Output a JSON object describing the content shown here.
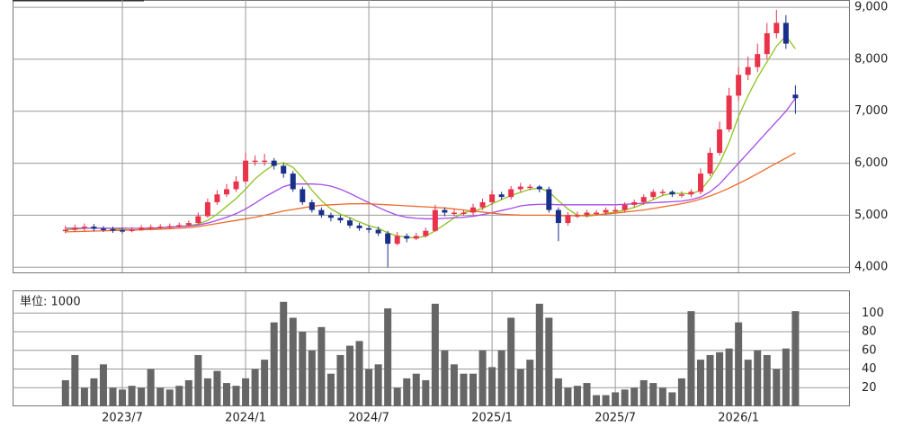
{
  "chart_data": {
    "type": "candlestick",
    "up_color": "#e8334a",
    "down_color": "#1a2f8a",
    "grid": true,
    "categories": [
      null,
      null,
      null,
      null,
      null,
      null,
      "2023/7",
      null,
      null,
      null,
      null,
      null,
      null,
      null,
      null,
      null,
      null,
      null,
      null,
      "2024/1",
      null,
      null,
      null,
      null,
      null,
      null,
      null,
      null,
      null,
      null,
      null,
      null,
      "2024/7",
      null,
      null,
      null,
      null,
      null,
      null,
      null,
      null,
      null,
      null,
      null,
      null,
      "2025/1",
      null,
      null,
      null,
      null,
      null,
      null,
      null,
      null,
      null,
      null,
      null,
      null,
      "2025/7",
      null,
      null,
      null,
      null,
      null,
      null,
      null,
      null,
      null,
      null,
      null,
      null,
      "2026/1",
      null,
      null,
      null,
      null,
      null,
      null
    ],
    "open": [
      4700,
      4720,
      4760,
      4780,
      4740,
      4730,
      4710,
      4700,
      4720,
      4760,
      4770,
      4780,
      4790,
      4810,
      4850,
      4980,
      5250,
      5400,
      5500,
      5650,
      6050,
      6050,
      6050,
      5950,
      5800,
      5500,
      5250,
      5100,
      5000,
      4950,
      4900,
      4800,
      4750,
      4720,
      4650,
      4450,
      4600,
      4550,
      4600,
      4700,
      5100,
      5050,
      5050,
      5050,
      5150,
      5250,
      5400,
      5350,
      5500,
      5550,
      5550,
      5500,
      5100,
      4850,
      5000,
      5000,
      5050,
      5050,
      5100,
      5100,
      5200,
      5250,
      5350,
      5450,
      5450,
      5400,
      5400,
      5450,
      5800,
      6200,
      6650,
      7300,
      7700,
      7850,
      8100,
      8500,
      8700,
      7320
    ],
    "high": [
      4800,
      4820,
      4840,
      4830,
      4790,
      4780,
      4760,
      4770,
      4810,
      4820,
      4830,
      4840,
      4860,
      4900,
      5050,
      5320,
      5480,
      5600,
      5750,
      6200,
      6150,
      6180,
      6100,
      6000,
      5850,
      5550,
      5300,
      5150,
      5050,
      5000,
      4950,
      4850,
      4800,
      4780,
      4700,
      4680,
      4650,
      4660,
      4760,
      5200,
      5150,
      5120,
      5100,
      5220,
      5320,
      5480,
      5450,
      5560,
      5620,
      5600,
      5580,
      5550,
      5150,
      5060,
      5070,
      5100,
      5100,
      5150,
      5160,
      5250,
      5300,
      5400,
      5500,
      5500,
      5480,
      5460,
      5500,
      5900,
      6300,
      6800,
      7450,
      7850,
      8050,
      8300,
      8700,
      8950,
      8850,
      7500
    ],
    "low": [
      4650,
      4680,
      4700,
      4690,
      4680,
      4660,
      4650,
      4670,
      4700,
      4720,
      4730,
      4740,
      4760,
      4780,
      4820,
      4950,
      5200,
      5350,
      5450,
      5600,
      5950,
      5950,
      5880,
      5720,
      5450,
      5200,
      5050,
      4950,
      4880,
      4850,
      4750,
      4700,
      4660,
      4600,
      4000,
      4420,
      4480,
      4520,
      4570,
      4680,
      4980,
      4980,
      4990,
      5000,
      5100,
      5200,
      5300,
      5300,
      5450,
      5480,
      5440,
      5050,
      4500,
      4800,
      4940,
      4960,
      4990,
      5000,
      5050,
      5060,
      5150,
      5200,
      5300,
      5380,
      5350,
      5340,
      5350,
      5400,
      5750,
      6150,
      6600,
      7200,
      7600,
      7750,
      8000,
      8400,
      8200,
      6950
    ],
    "close": [
      4720,
      4760,
      4780,
      4740,
      4730,
      4710,
      4700,
      4720,
      4760,
      4770,
      4780,
      4790,
      4810,
      4850,
      4980,
      5250,
      5400,
      5500,
      5650,
      6050,
      6050,
      6050,
      5950,
      5800,
      5500,
      5250,
      5100,
      5000,
      4950,
      4900,
      4800,
      4750,
      4720,
      4650,
      4450,
      4600,
      4550,
      4600,
      4700,
      5100,
      5050,
      5050,
      5050,
      5150,
      5250,
      5400,
      5350,
      5500,
      5550,
      5550,
      5500,
      5100,
      4850,
      5000,
      5000,
      5050,
      5050,
      5100,
      5100,
      5200,
      5250,
      5350,
      5450,
      5450,
      5400,
      5400,
      5450,
      5800,
      6200,
      6650,
      7300,
      7700,
      7850,
      8100,
      8500,
      8700,
      8300,
      7250
    ],
    "series": [
      {
        "color": "#8dc21f",
        "values": [
          4720,
          4730,
          4745,
          4755,
          4750,
          4740,
          4725,
          4715,
          4720,
          4735,
          4755,
          4770,
          4785,
          4800,
          4830,
          4900,
          5020,
          5170,
          5320,
          5500,
          5700,
          5850,
          5970,
          6010,
          5920,
          5720,
          5480,
          5280,
          5120,
          5020,
          4950,
          4870,
          4800,
          4750,
          4660,
          4600,
          4580,
          4560,
          4600,
          4700,
          4820,
          4950,
          5050,
          5080,
          5130,
          5220,
          5300,
          5380,
          5440,
          5500,
          5520,
          5450,
          5280,
          5120,
          5000,
          4980,
          5000,
          5030,
          5060,
          5100,
          5150,
          5220,
          5300,
          5380,
          5420,
          5420,
          5410,
          5480,
          5700,
          6000,
          6400,
          6900,
          7300,
          7650,
          7950,
          8250,
          8450,
          8200
        ]
      },
      {
        "color": "#a64ce8",
        "values": [
          4750,
          4750,
          4750,
          4750,
          4750,
          4750,
          4750,
          4750,
          4750,
          4750,
          4760,
          4770,
          4780,
          4790,
          4810,
          4850,
          4900,
          4960,
          5030,
          5120,
          5230,
          5350,
          5450,
          5550,
          5600,
          5600,
          5600,
          5590,
          5560,
          5500,
          5420,
          5330,
          5240,
          5150,
          5070,
          5000,
          4960,
          4940,
          4930,
          4930,
          4940,
          4950,
          4960,
          4980,
          5010,
          5050,
          5090,
          5130,
          5180,
          5200,
          5210,
          5210,
          5200,
          5200,
          5200,
          5200,
          5200,
          5200,
          5200,
          5210,
          5220,
          5230,
          5240,
          5250,
          5260,
          5270,
          5300,
          5350,
          5450,
          5600,
          5800,
          6000,
          6200,
          6400,
          6600,
          6800,
          7000,
          7250
        ]
      },
      {
        "color": "#f06a2a",
        "values": [
          4680,
          4685,
          4690,
          4695,
          4700,
          4705,
          4710,
          4715,
          4720,
          4725,
          4730,
          4740,
          4750,
          4760,
          4780,
          4810,
          4840,
          4870,
          4900,
          4930,
          4960,
          5000,
          5040,
          5080,
          5110,
          5140,
          5170,
          5190,
          5200,
          5210,
          5220,
          5220,
          5220,
          5210,
          5200,
          5190,
          5180,
          5170,
          5160,
          5150,
          5140,
          5120,
          5100,
          5080,
          5060,
          5040,
          5020,
          5010,
          5000,
          5000,
          5000,
          5000,
          4990,
          4990,
          4990,
          5000,
          5010,
          5020,
          5040,
          5060,
          5080,
          5100,
          5130,
          5160,
          5190,
          5220,
          5260,
          5310,
          5370,
          5440,
          5520,
          5610,
          5700,
          5800,
          5900,
          6000,
          6100,
          6200
        ]
      }
    ],
    "ylim": [
      3900,
      9140
    ],
    "yticks": [
      {
        "value": 4000,
        "label": "4,000"
      },
      {
        "value": 5000,
        "label": "5,000"
      },
      {
        "value": 6000,
        "label": "6,000"
      },
      {
        "value": 7000,
        "label": "7,000"
      },
      {
        "value": 8000,
        "label": "8,000"
      },
      {
        "value": 9000,
        "label": "9,000"
      }
    ],
    "volume": {
      "label": "単位: 1000",
      "color": "#666666",
      "values": [
        28,
        55,
        20,
        30,
        45,
        20,
        18,
        22,
        20,
        40,
        20,
        18,
        22,
        28,
        55,
        30,
        38,
        25,
        22,
        30,
        40,
        50,
        90,
        112,
        95,
        80,
        60,
        85,
        35,
        55,
        65,
        70,
        40,
        45,
        105,
        20,
        30,
        35,
        28,
        110,
        60,
        45,
        35,
        35,
        60,
        42,
        60,
        95,
        40,
        50,
        110,
        95,
        30,
        20,
        22,
        25,
        12,
        12,
        15,
        18,
        20,
        28,
        25,
        20,
        15,
        30,
        102,
        50,
        55,
        58,
        62,
        90,
        50,
        60,
        55,
        40,
        62,
        102
      ],
      "ylim": [
        0,
        120
      ],
      "yticks": [
        20,
        40,
        60,
        80,
        100
      ]
    }
  }
}
